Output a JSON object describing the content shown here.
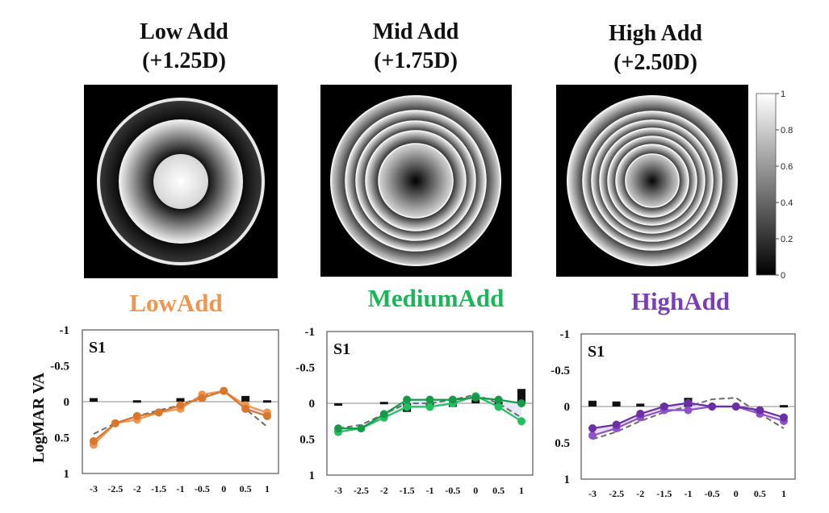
{
  "panels": [
    {
      "title_line1": "Low Add",
      "title_line2": "(+1.25D)",
      "condition": "LowAdd",
      "color": "#F0954E"
    },
    {
      "title_line1": "Mid Add",
      "title_line2": "(+1.75D)",
      "condition": "MediumAdd",
      "color": "#1DB55A"
    },
    {
      "title_line1": "High Add",
      "title_line2": "(+2.50D)",
      "condition": "HighAdd",
      "color": "#7B3FB5"
    }
  ],
  "colorbar": {
    "ticks": [
      "1",
      "0.8",
      "0.6",
      "0.4",
      "0.2",
      "0"
    ]
  },
  "chart_data": [
    {
      "type": "line",
      "subject_label": "S1",
      "ylabel": "LogMAR VA",
      "y_reversed": true,
      "ylim": [
        -1,
        1
      ],
      "yticks": [
        "-1",
        "-0.5",
        "0",
        "0.5",
        "1"
      ],
      "x": [
        -3,
        -2.5,
        -2,
        -1.5,
        -1,
        -0.5,
        0,
        0.5,
        1
      ],
      "xticks": [
        "-3",
        "-2.5",
        "-2",
        "-1.5",
        "-1",
        "-0.5",
        "0",
        "0.5",
        "1"
      ],
      "series": [
        {
          "values": [
            0.6,
            0.3,
            0.25,
            0.15,
            0.1,
            -0.1,
            -0.15,
            0.05,
            0.15
          ]
        },
        {
          "values": [
            0.55,
            0.3,
            0.2,
            0.15,
            0.05,
            -0.05,
            -0.15,
            0.1,
            0.2
          ]
        }
      ],
      "predicted_values": [
        0.45,
        0.3,
        0.2,
        0.12,
        0.05,
        -0.08,
        -0.15,
        0.1,
        0.35
      ],
      "difference_bars": [
        -0.05,
        0,
        -0.02,
        0,
        -0.05,
        0,
        0,
        -0.08,
        -0.02
      ]
    },
    {
      "type": "line",
      "subject_label": "S1",
      "ylabel": "",
      "y_reversed": true,
      "ylim": [
        -1,
        1
      ],
      "yticks": [
        "-1",
        "-0.5",
        "0",
        "0.5",
        "1"
      ],
      "x": [
        -3,
        -2.5,
        -2,
        -1.5,
        -1,
        -0.5,
        0,
        0.5,
        1
      ],
      "xticks": [
        "-3",
        "-2.5",
        "-2",
        "-1.5",
        "-1",
        "-0.5",
        "0",
        "0.5",
        "1"
      ],
      "series": [
        {
          "values": [
            0.4,
            0.35,
            0.2,
            0.05,
            0.05,
            0.0,
            -0.1,
            0.05,
            0.25
          ]
        },
        {
          "values": [
            0.35,
            0.35,
            0.15,
            -0.05,
            -0.05,
            -0.05,
            -0.08,
            -0.05,
            0.0
          ]
        }
      ],
      "predicted_values": [
        0.35,
        0.3,
        0.15,
        0.0,
        0.0,
        -0.05,
        -0.12,
        0.0,
        0.2
      ],
      "difference_bars": [
        0.03,
        0,
        -0.02,
        0.12,
        0.03,
        0.05,
        -0.05,
        -0.02,
        -0.2
      ]
    },
    {
      "type": "line",
      "subject_label": "S1",
      "ylabel": "",
      "y_reversed": true,
      "ylim": [
        -1,
        1
      ],
      "yticks": [
        "-1",
        "-0.5",
        "0",
        "0.5",
        "1"
      ],
      "x": [
        -3,
        -2.5,
        -2,
        -1.5,
        -1,
        -0.5,
        0,
        0.5,
        1
      ],
      "xticks": [
        "-3",
        "-2.5",
        "-2",
        "-1.5",
        "-1",
        "-0.5",
        "0",
        "0.5",
        "1"
      ],
      "series": [
        {
          "values": [
            0.4,
            0.3,
            0.15,
            0.05,
            0.05,
            0.0,
            0.0,
            0.1,
            0.2
          ]
        },
        {
          "values": [
            0.3,
            0.25,
            0.1,
            0.0,
            -0.05,
            0.0,
            0.0,
            0.05,
            0.15
          ]
        }
      ],
      "predicted_values": [
        0.45,
        0.35,
        0.2,
        0.08,
        0.0,
        -0.1,
        -0.12,
        0.1,
        0.3
      ],
      "difference_bars": [
        -0.08,
        -0.07,
        -0.04,
        -0.03,
        -0.12,
        0,
        0,
        0,
        -0.02
      ]
    }
  ]
}
